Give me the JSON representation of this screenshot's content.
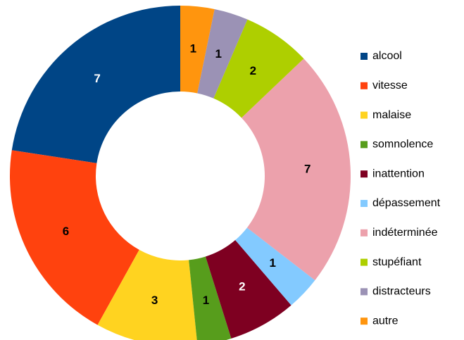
{
  "chart_data": {
    "type": "donut",
    "categories": [
      "alcool",
      "vitesse",
      "malaise",
      "somnolence",
      "inattention",
      "dépassement",
      "indéterminée",
      "stupéfiant",
      "distracteurs",
      "autre"
    ],
    "values": [
      7,
      6,
      3,
      1,
      2,
      1,
      7,
      2,
      1,
      1
    ],
    "colors": [
      "#004586",
      "#ff420e",
      "#ffd320",
      "#579d1c",
      "#7e0021",
      "#83caff",
      "#eca1ac",
      "#aecf00",
      "#9b92b5",
      "#ff950e"
    ],
    "legend": "right"
  }
}
